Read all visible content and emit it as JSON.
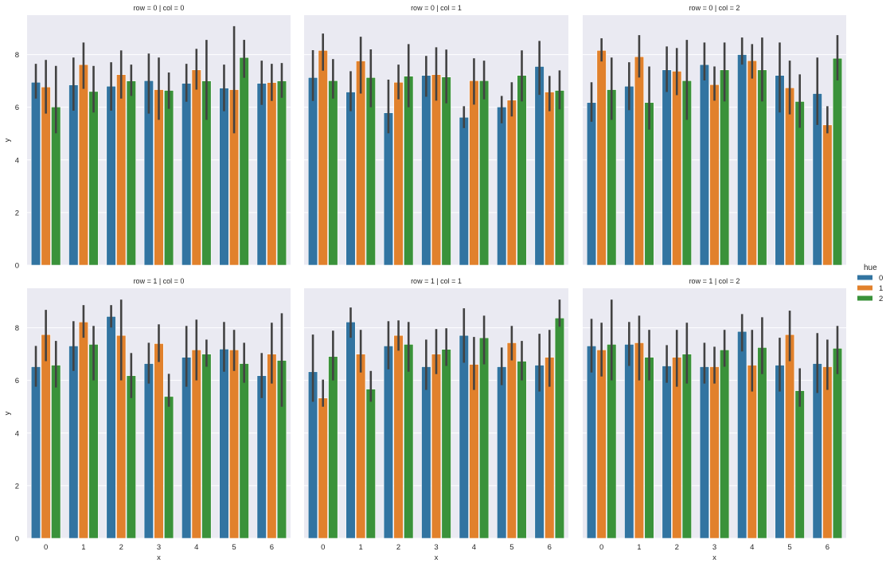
{
  "chart_data": {
    "type": "bar",
    "facet_rows": [
      0,
      1
    ],
    "facet_cols": [
      0,
      1,
      2
    ],
    "xlabel": "x",
    "ylabel": "y",
    "ylim": [
      0,
      9.5
    ],
    "yticks": [
      0,
      2,
      4,
      6,
      8
    ],
    "categories": [
      "0",
      "1",
      "2",
      "3",
      "4",
      "5",
      "6"
    ],
    "grid": true,
    "legend": {
      "title": "hue",
      "placement": "right",
      "entries": [
        {
          "label": "0",
          "color": "#3274a1"
        },
        {
          "label": "1",
          "color": "#e1812c"
        },
        {
          "label": "2",
          "color": "#3a923a"
        }
      ]
    },
    "errorbar_color": "#424242",
    "background": "#eaeaf2",
    "panels": [
      {
        "title": "row = 0 | col = 0",
        "row": 0,
        "col": 0,
        "series": [
          {
            "name": "0",
            "values": [
              6.95,
              6.85,
              6.8,
              7.01,
              6.91,
              6.73,
              6.91
            ],
            "err_low": [
              6.33,
              5.87,
              5.87,
              5.76,
              6.21,
              5.85,
              6.09
            ],
            "err_high": [
              7.65,
              7.89,
              7.71,
              8.04,
              7.65,
              7.62,
              7.77
            ]
          },
          {
            "name": "1",
            "values": [
              6.77,
              7.62,
              7.24,
              6.67,
              7.42,
              6.67,
              6.94
            ],
            "err_low": [
              5.76,
              6.7,
              6.33,
              5.52,
              6.67,
              5.01,
              6.24
            ],
            "err_high": [
              7.8,
              8.46,
              8.16,
              7.89,
              8.22,
              9.08,
              7.65
            ]
          },
          {
            "name": "2",
            "values": [
              6.01,
              6.6,
              7.0,
              6.64,
              7.0,
              7.89,
              7.0
            ],
            "err_low": [
              5.01,
              5.8,
              6.43,
              5.94,
              5.52,
              7.12,
              6.36
            ],
            "err_high": [
              7.57,
              7.57,
              7.62,
              7.32,
              8.56,
              8.56,
              7.68
            ]
          }
        ]
      },
      {
        "title": "row = 0 | col = 1",
        "row": 0,
        "col": 1,
        "series": [
          {
            "name": "0",
            "values": [
              7.13,
              6.58,
              5.79,
              7.21,
              5.62,
              6.01,
              7.55
            ],
            "err_low": [
              6.24,
              5.85,
              5.01,
              6.4,
              5.21,
              5.39,
              6.47
            ],
            "err_high": [
              8.17,
              7.37,
              7.05,
              7.95,
              6.04,
              6.43,
              8.52
            ]
          },
          {
            "name": "1",
            "values": [
              8.16,
              7.76,
              6.95,
              7.24,
              7.01,
              6.27,
              6.58
            ],
            "err_low": [
              7.39,
              6.52,
              6.3,
              6.25,
              6.1,
              5.65,
              5.85
            ],
            "err_high": [
              8.8,
              8.68,
              7.62,
              8.28,
              7.86,
              6.95,
              7.19
            ]
          },
          {
            "name": "2",
            "values": [
              7.01,
              7.13,
              7.18,
              7.15,
              7.01,
              7.21,
              6.64
            ],
            "err_low": [
              6.33,
              6.0,
              6.0,
              6.15,
              6.3,
              6.22,
              5.92
            ],
            "err_high": [
              7.83,
              8.2,
              8.4,
              8.19,
              7.77,
              8.16,
              7.4
            ]
          }
        ]
      },
      {
        "title": "row = 0 | col = 2",
        "row": 0,
        "col": 2,
        "series": [
          {
            "name": "0",
            "values": [
              6.18,
              6.8,
              7.42,
              7.62,
              8.0,
              7.21,
              6.52
            ],
            "err_low": [
              5.45,
              5.89,
              6.58,
              7.02,
              7.62,
              5.8,
              5.33
            ],
            "err_high": [
              6.95,
              7.71,
              8.31,
              8.46,
              8.65,
              8.46,
              7.89
            ]
          },
          {
            "name": "1",
            "values": [
              8.16,
              7.92,
              7.37,
              6.86,
              7.77,
              6.74,
              5.33
            ],
            "err_low": [
              7.74,
              7.13,
              6.46,
              6.25,
              7.09,
              5.73,
              5.01
            ],
            "err_high": [
              8.62,
              8.74,
              8.25,
              7.55,
              8.4,
              7.77,
              6.04
            ]
          },
          {
            "name": "2",
            "values": [
              6.67,
              6.18,
              7.01,
              7.42,
              7.42,
              6.22,
              7.86
            ],
            "err_low": [
              5.52,
              5.15,
              5.52,
              6.22,
              6.22,
              5.22,
              7.02
            ],
            "err_high": [
              7.89,
              7.55,
              8.56,
              8.46,
              8.65,
              7.25,
              8.74
            ]
          }
        ]
      },
      {
        "title": "row = 1 | col = 0",
        "row": 1,
        "col": 0,
        "series": [
          {
            "name": "0",
            "values": [
              6.52,
              7.31,
              8.43,
              6.64,
              6.88,
              7.19,
              6.18
            ],
            "err_low": [
              5.76,
              6.36,
              8.01,
              5.88,
              5.76,
              6.33,
              5.33
            ],
            "err_high": [
              7.31,
              8.25,
              8.86,
              7.43,
              8.07,
              8.22,
              7.04
            ]
          },
          {
            "name": "1",
            "values": [
              7.74,
              8.22,
              7.71,
              7.4,
              7.16,
              7.16,
              7.0
            ],
            "err_low": [
              6.73,
              7.62,
              6.0,
              6.7,
              6.0,
              6.36,
              5.88
            ],
            "err_high": [
              8.68,
              8.86,
              9.07,
              8.13,
              8.31,
              7.92,
              8.19
            ]
          },
          {
            "name": "2",
            "values": [
              6.58,
              7.37,
              6.18,
              5.39,
              7.0,
              6.64,
              6.76
            ],
            "err_low": [
              5.73,
              6.0,
              5.33,
              5.0,
              6.52,
              5.91,
              5.0
            ],
            "err_high": [
              7.5,
              8.07,
              7.04,
              6.25,
              7.55,
              7.43,
              8.55
            ]
          }
        ]
      },
      {
        "title": "row = 1 | col = 1",
        "row": 1,
        "col": 1,
        "series": [
          {
            "name": "0",
            "values": [
              6.33,
              8.22,
              7.31,
              6.52,
              7.71,
              6.52,
              6.58
            ],
            "err_low": [
              5.19,
              7.62,
              6.42,
              5.64,
              6.67,
              5.82,
              5.58
            ],
            "err_high": [
              7.74,
              8.77,
              8.25,
              7.55,
              8.74,
              7.25,
              7.77
            ]
          },
          {
            "name": "1",
            "values": [
              5.33,
              7.0,
              7.71,
              7.0,
              6.61,
              7.43,
              6.88
            ],
            "err_low": [
              5.0,
              6.3,
              7.13,
              6.24,
              5.64,
              6.76,
              5.76
            ],
            "err_high": [
              6.03,
              7.92,
              8.28,
              7.95,
              7.65,
              8.07,
              7.92
            ]
          },
          {
            "name": "2",
            "values": [
              6.91,
              5.67,
              7.37,
              7.18,
              7.62,
              6.73,
              8.37
            ],
            "err_low": [
              6.0,
              5.19,
              6.33,
              6.55,
              6.61,
              6.0,
              8.04
            ],
            "err_high": [
              7.89,
              6.36,
              8.22,
              7.98,
              8.46,
              7.5,
              9.07
            ]
          }
        ]
      },
      {
        "title": "row = 1 | col = 2",
        "row": 1,
        "col": 2,
        "series": [
          {
            "name": "0",
            "values": [
              7.31,
              7.37,
              6.55,
              6.52,
              7.86,
              6.58,
              6.64
            ],
            "err_low": [
              6.3,
              6.55,
              5.91,
              5.88,
              7.1,
              5.58,
              5.52
            ],
            "err_high": [
              8.34,
              8.22,
              7.34,
              7.43,
              8.52,
              7.62,
              7.8
            ]
          },
          {
            "name": "1",
            "values": [
              7.16,
              7.43,
              6.88,
              6.52,
              6.58,
              7.74,
              6.52
            ],
            "err_low": [
              6.15,
              6.0,
              5.76,
              5.88,
              5.58,
              6.73,
              5.64
            ],
            "err_high": [
              8.19,
              8.46,
              7.92,
              7.28,
              7.92,
              8.65,
              7.55
            ]
          },
          {
            "name": "2",
            "values": [
              7.37,
              6.88,
              7.0,
              7.16,
              7.25,
              5.61,
              7.22
            ],
            "err_low": [
              6.0,
              6.0,
              5.88,
              6.52,
              6.24,
              5.0,
              6.24
            ],
            "err_high": [
              9.07,
              7.92,
              8.19,
              7.92,
              8.4,
              6.46,
              8.07
            ]
          }
        ]
      }
    ]
  }
}
